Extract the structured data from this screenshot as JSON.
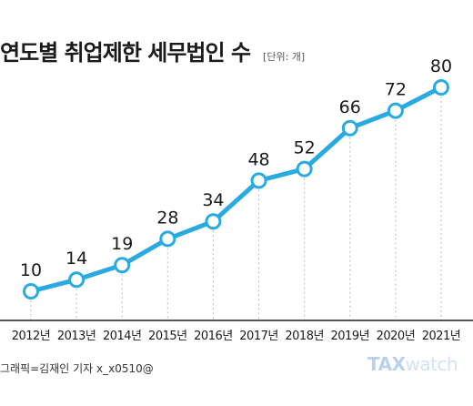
{
  "title": "연도별 취업제한 세무법인 수",
  "unit_label": "[단위: 개]",
  "credit": "그래픽=김재인 기자 x_x0510@",
  "logo": {
    "part1": "TAX",
    "part2": "watch"
  },
  "colors": {
    "line": "#29abe2",
    "marker_fill": "#ffffff",
    "axis": "#222222",
    "guide": "#bbbbbb"
  },
  "chart_data": {
    "type": "line",
    "categories": [
      "2012년",
      "2013년",
      "2014년",
      "2015년",
      "2016년",
      "2017년",
      "2018년",
      "2019년",
      "2020년",
      "2021년"
    ],
    "values": [
      10,
      14,
      19,
      28,
      34,
      48,
      52,
      66,
      72,
      80
    ],
    "title": "연도별 취업제한 세무법인 수",
    "xlabel": "",
    "ylabel": "",
    "data_labels": true,
    "grid": false,
    "legend": "none"
  }
}
